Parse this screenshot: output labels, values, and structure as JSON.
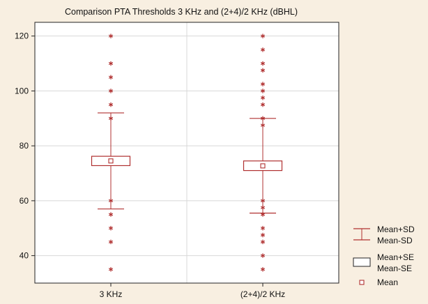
{
  "chart_data": {
    "type": "box",
    "title": "Comparison PTA Thresholds 3 KHz and (2+4)/2 KHz (dBHL)",
    "xlabel": "",
    "ylabel": "",
    "ylim": [
      30,
      125
    ],
    "yticks": [
      40,
      60,
      80,
      100,
      120
    ],
    "grid": true,
    "legend_position": "right",
    "categories": [
      "3 KHz",
      "(2+4)/2 KHz"
    ],
    "series": [
      {
        "category": "3 KHz",
        "mean": 74.5,
        "mean_plus_se": 76.2,
        "mean_minus_se": 72.8,
        "mean_plus_sd": 92,
        "mean_minus_sd": 57,
        "points": [
          120,
          110,
          105,
          100,
          95,
          90,
          60,
          55,
          50,
          45,
          35
        ]
      },
      {
        "category": "(2+4)/2 KHz",
        "mean": 72.7,
        "mean_plus_se": 74.5,
        "mean_minus_se": 71,
        "mean_plus_sd": 90,
        "mean_minus_sd": 55.5,
        "points": [
          120,
          115,
          110,
          107.5,
          102.5,
          100,
          97.5,
          95,
          90,
          87.5,
          60,
          57.5,
          55,
          50,
          47.5,
          45,
          40,
          35
        ]
      }
    ],
    "legend": [
      {
        "symbol": "whisker",
        "label_line1": "Mean+SD",
        "label_line2": "Mean-SD"
      },
      {
        "symbol": "box",
        "label_line1": "Mean+SE",
        "label_line2": "Mean-SE"
      },
      {
        "symbol": "square",
        "label_line1": "Mean",
        "label_line2": ""
      }
    ],
    "colors": {
      "series": "#b03030",
      "background": "#f8efe1",
      "plot_bg": "#ffffff",
      "grid": "#d8d8d8"
    }
  }
}
